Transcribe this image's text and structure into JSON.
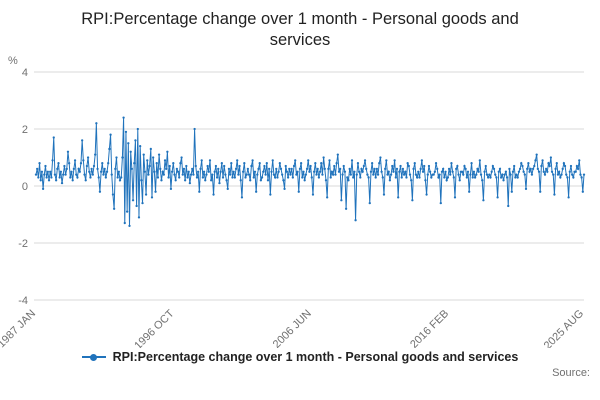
{
  "title": "RPI:Percentage change over 1 month - Personal goods and services",
  "legend": {
    "label": "RPI:Percentage change over 1 month - Personal goods and services"
  },
  "source_label": "Source:",
  "colors": {
    "series": "#2073BC",
    "grid": "#d9d9d9",
    "axis_text": "#707070",
    "title_text": "#222222"
  },
  "chart_data": {
    "type": "line",
    "title": "RPI:Percentage change over 1 month - Personal goods and services",
    "xlabel": "",
    "ylabel": "%",
    "ylim": [
      -4,
      4
    ],
    "y_ticks": [
      4,
      2,
      0,
      -2,
      -4
    ],
    "x_tick_labels": [
      "1987 JAN",
      "1996 OCT",
      "2006 JUN",
      "2016 FEB",
      "2025 AUG"
    ],
    "x_tick_indices": [
      0,
      117,
      233,
      349,
      463
    ],
    "frequency": "monthly",
    "x_start": "1987 JAN",
    "x_end": "2025 AUG",
    "grid": true,
    "legend_position": "bottom",
    "series": [
      {
        "name": "RPI:Percentage change over 1 month - Personal goods and services",
        "values": [
          0.4,
          0.6,
          0.3,
          0.8,
          0.2,
          0.5,
          -0.1,
          0.4,
          0.7,
          0.3,
          0.5,
          0.2,
          0.5,
          0.3,
          0.9,
          1.7,
          0.4,
          0.2,
          0.6,
          0.8,
          0.3,
          0.5,
          0.1,
          0.4,
          0.7,
          0.4,
          0.6,
          1.2,
          0.8,
          0.3,
          0.5,
          0.2,
          0.6,
          0.9,
          0.4,
          0.3,
          0.6,
          0.5,
          0.8,
          1.6,
          0.9,
          0.4,
          0.2,
          0.7,
          1.0,
          0.5,
          0.3,
          0.6,
          0.4,
          0.7,
          1.1,
          2.2,
          0.6,
          0.3,
          -0.2,
          0.5,
          0.8,
          0.4,
          0.6,
          0.3,
          0.5,
          0.8,
          1.3,
          1.8,
          0.4,
          -0.3,
          -0.8,
          0.6,
          1.0,
          0.3,
          0.5,
          0.2,
          0.3,
          1.0,
          2.4,
          -1.3,
          1.9,
          -0.9,
          1.5,
          -1.4,
          1.2,
          0.6,
          -0.5,
          0.8,
          1.6,
          -0.7,
          2.0,
          -1.1,
          1.4,
          0.2,
          -0.6,
          1.1,
          0.5,
          -0.3,
          0.9,
          0.4,
          0.7,
          1.3,
          -0.4,
          1.0,
          0.5,
          -0.2,
          0.8,
          0.3,
          1.1,
          0.6,
          0.2,
          0.5,
          0.4,
          0.9,
          0.6,
          1.2,
          0.3,
          0.7,
          -0.1,
          0.5,
          0.8,
          0.4,
          0.2,
          0.6,
          0.5,
          0.3,
          0.8,
          1.0,
          0.4,
          0.6,
          0.2,
          0.7,
          0.3,
          0.5,
          0.1,
          0.4,
          0.6,
          0.4,
          2.0,
          0.7,
          0.3,
          0.5,
          -0.2,
          0.6,
          0.9,
          0.3,
          0.5,
          0.2,
          0.4,
          0.7,
          0.5,
          0.9,
          0.2,
          0.4,
          -0.3,
          0.5,
          0.7,
          0.3,
          0.6,
          0.1,
          0.5,
          0.8,
          0.3,
          0.7,
          0.4,
          0.2,
          -0.1,
          0.6,
          0.4,
          0.8,
          0.3,
          0.5,
          0.3,
          0.6,
          0.9,
          0.4,
          0.7,
          0.2,
          -0.4,
          0.5,
          0.8,
          0.3,
          0.4,
          0.6,
          0.4,
          0.2,
          0.7,
          0.9,
          0.3,
          0.5,
          -0.2,
          0.4,
          0.6,
          0.8,
          0.2,
          0.3,
          0.5,
          0.7,
          0.4,
          0.8,
          0.2,
          0.6,
          -0.3,
          0.5,
          0.9,
          0.4,
          0.3,
          0.6,
          0.3,
          0.5,
          0.8,
          0.6,
          0.4,
          0.2,
          -0.1,
          0.7,
          0.5,
          0.3,
          0.6,
          0.4,
          0.6,
          0.3,
          0.7,
          0.9,
          0.4,
          0.5,
          -0.2,
          0.6,
          0.8,
          0.3,
          0.5,
          0.2,
          0.4,
          0.6,
          0.9,
          0.5,
          0.7,
          0.3,
          -0.3,
          0.5,
          0.8,
          0.4,
          0.6,
          0.3,
          0.5,
          0.8,
          0.4,
          1.0,
          0.6,
          0.2,
          -0.4,
          0.6,
          0.9,
          0.3,
          0.5,
          0.4,
          0.7,
          0.4,
          0.8,
          1.1,
          0.5,
          0.6,
          -0.5,
          0.4,
          0.7,
          0.5,
          -0.8,
          0.3,
          0.2,
          0.6,
          0.4,
          0.9,
          0.3,
          0.5,
          -1.2,
          0.4,
          0.8,
          0.5,
          0.3,
          0.6,
          0.5,
          0.7,
          0.9,
          0.6,
          0.4,
          0.3,
          -0.6,
          0.5,
          0.8,
          0.4,
          0.6,
          0.3,
          0.6,
          0.4,
          0.8,
          1.0,
          0.5,
          0.3,
          -0.3,
          0.6,
          0.9,
          0.4,
          0.5,
          0.2,
          0.4,
          0.7,
          0.5,
          0.9,
          0.3,
          0.6,
          -0.4,
          0.5,
          0.7,
          0.3,
          0.6,
          0.4,
          0.5,
          0.3,
          0.8,
          0.7,
          0.4,
          0.2,
          -0.5,
          0.6,
          0.8,
          0.4,
          0.3,
          0.5,
          0.3,
          0.6,
          0.9,
          0.5,
          0.7,
          0.2,
          -0.3,
          0.4,
          0.7,
          0.5,
          0.3,
          0.4,
          0.4,
          0.5,
          0.8,
          0.6,
          0.3,
          0.4,
          -0.6,
          0.5,
          0.6,
          0.3,
          0.5,
          0.2,
          0.3,
          0.6,
          0.4,
          0.8,
          0.5,
          0.3,
          -0.4,
          0.6,
          0.7,
          0.4,
          0.2,
          0.5,
          0.5,
          0.4,
          0.7,
          0.6,
          0.3,
          0.5,
          -0.2,
          0.4,
          0.8,
          0.3,
          0.5,
          0.3,
          0.4,
          0.6,
          0.5,
          0.9,
          0.4,
          0.2,
          -0.5,
          0.5,
          0.7,
          0.4,
          0.3,
          0.4,
          0.3,
          0.5,
          0.7,
          0.6,
          0.4,
          0.3,
          -0.4,
          0.5,
          0.6,
          0.3,
          0.4,
          0.2,
          0.4,
          0.5,
          0.3,
          -0.7,
          0.6,
          0.4,
          -0.2,
          0.5,
          0.7,
          0.3,
          0.4,
          0.3,
          0.5,
          0.6,
          0.8,
          0.7,
          0.5,
          0.4,
          -0.1,
          0.6,
          0.8,
          0.5,
          0.6,
          0.4,
          0.6,
          0.7,
          0.9,
          1.1,
          0.6,
          0.5,
          -0.2,
          0.7,
          0.9,
          0.5,
          0.4,
          0.6,
          0.5,
          0.8,
          0.7,
          1.0,
          0.5,
          0.4,
          -0.3,
          0.6,
          0.8,
          0.4,
          0.5,
          0.3,
          0.4,
          0.6,
          0.8,
          0.7,
          0.4,
          0.3,
          -0.4,
          0.5,
          0.7,
          0.4,
          0.3,
          0.5,
          0.5,
          0.7,
          0.6,
          0.9,
          0.4,
          0.3,
          -0.2,
          0.4
        ]
      }
    ]
  }
}
